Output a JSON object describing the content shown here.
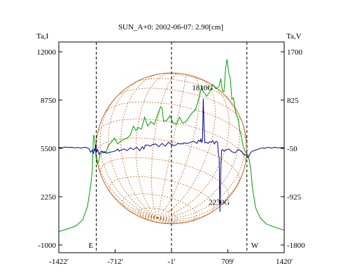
{
  "chart_data": {
    "type": "line",
    "title": "SUN_A+0: 2002-06-07: 2.90[cm]",
    "left_axis_label": "Ta,I",
    "right_axis_label": "Ta,V",
    "x_ticks": [
      "-1422'",
      "-712'",
      "-1'",
      "709'",
      "1420'"
    ],
    "x_tick_values": [
      -1422,
      -712,
      -1,
      709,
      1420
    ],
    "xlim": [
      -1422,
      1420
    ],
    "left_ticks": [
      "12000",
      "8750",
      "5500",
      "2250",
      "-1000"
    ],
    "left_tick_values": [
      12000,
      8750,
      5500,
      2250,
      -1000
    ],
    "ylim_left": [
      -1000,
      12000
    ],
    "right_ticks": [
      "1700",
      "825",
      "-50",
      "-925",
      "-1800"
    ],
    "right_tick_values": [
      1700,
      825,
      -50,
      -925,
      -1800
    ],
    "ylim_right": [
      -1800,
      1700
    ],
    "limb_markers": [
      {
        "label": "E",
        "x": -950
      },
      {
        "label": "W",
        "x": 950
      }
    ],
    "center_marker_x": -1,
    "annotations": [
      {
        "text": "1810G",
        "x": 390,
        "y_left": 9400
      },
      {
        "text": "2230G",
        "x": 600,
        "y_left": 1700
      }
    ],
    "grid": false,
    "series": [
      {
        "axis": "left",
        "color": "#00a000",
        "x": [
          -1422,
          -1300,
          -1200,
          -1120,
          -1060,
          -1020,
          -1000,
          -985,
          -970,
          -955,
          -940,
          -920,
          -900,
          -880,
          -860,
          -840,
          -820,
          -800,
          -760,
          -720,
          -680,
          -640,
          -600,
          -560,
          -520,
          -480,
          -450,
          -420,
          -380,
          -340,
          -300,
          -260,
          -220,
          -180,
          -140,
          -120,
          -100,
          -60,
          -20,
          20,
          60,
          100,
          140,
          180,
          220,
          260,
          300,
          330,
          360,
          380,
          400,
          420,
          440,
          480,
          520,
          560,
          600,
          620,
          640,
          660,
          680,
          700,
          720,
          740,
          760,
          780,
          800,
          820,
          840,
          860,
          880,
          900,
          920,
          940,
          960,
          980,
          1000,
          1020,
          1060,
          1120,
          1200,
          1300,
          1420
        ],
        "y": [
          -100,
          100,
          300,
          700,
          1600,
          3000,
          4000,
          6400,
          6200,
          5000,
          4500,
          4600,
          5100,
          5200,
          5300,
          5200,
          5300,
          5700,
          5900,
          6200,
          5800,
          6000,
          6100,
          6200,
          6400,
          7000,
          6700,
          6900,
          6800,
          7600,
          7000,
          7300,
          7100,
          7700,
          8300,
          8200,
          7300,
          7400,
          7700,
          7200,
          7100,
          7600,
          7200,
          7300,
          7600,
          7900,
          8100,
          8600,
          9200,
          9700,
          9300,
          9200,
          9000,
          9300,
          9800,
          9500,
          9700,
          10200,
          9400,
          9300,
          10800,
          11500,
          10600,
          10200,
          8800,
          8900,
          8200,
          7700,
          7500,
          6700,
          6300,
          5700,
          5400,
          5200,
          5100,
          4700,
          4000,
          2800,
          1500,
          800,
          400,
          200,
          0
        ]
      },
      {
        "axis": "right",
        "color": "#00008b",
        "x": [
          -1422,
          -1380,
          -1340,
          -1300,
          -1260,
          -1220,
          -1180,
          -1140,
          -1100,
          -1060,
          -1040,
          -1020,
          -1000,
          -985,
          -975,
          -965,
          -955,
          -945,
          -930,
          -915,
          -900,
          -880,
          -860,
          -840,
          -820,
          -780,
          -740,
          -700,
          -680,
          -660,
          -640,
          -600,
          -560,
          -520,
          -480,
          -440,
          -400,
          -370,
          -350,
          -330,
          -300,
          -270,
          -240,
          -200,
          -160,
          -120,
          -80,
          -40,
          0,
          40,
          80,
          120,
          160,
          200,
          240,
          280,
          320,
          340,
          360,
          370,
          380,
          390,
          400,
          410,
          420,
          440,
          460,
          480,
          500,
          520,
          540,
          560,
          580,
          590,
          600,
          610,
          620,
          630,
          640,
          660,
          680,
          720,
          760,
          800,
          840,
          880,
          920,
          940,
          960,
          980,
          1000,
          1020,
          1060,
          1100,
          1140,
          1180,
          1220,
          1260,
          1300,
          1340,
          1380,
          1420
        ],
        "y": [
          -30,
          -40,
          -25,
          -35,
          -30,
          -40,
          -35,
          -45,
          -30,
          -40,
          -60,
          -120,
          -80,
          -150,
          -60,
          -90,
          20,
          -110,
          -70,
          -160,
          -120,
          -100,
          -130,
          -110,
          -140,
          -120,
          -110,
          -90,
          -60,
          -100,
          -80,
          -60,
          -90,
          -40,
          -70,
          -30,
          -90,
          -20,
          -60,
          10,
          10,
          -10,
          20,
          30,
          -20,
          40,
          -10,
          60,
          20,
          0,
          40,
          30,
          50,
          40,
          60,
          80,
          40,
          100,
          70,
          120,
          60,
          90,
          850,
          300,
          50,
          60,
          40,
          70,
          60,
          90,
          30,
          80,
          60,
          -150,
          -220,
          -1200,
          -450,
          -90,
          -70,
          -100,
          -80,
          -60,
          -110,
          -130,
          -70,
          -100,
          -170,
          -160,
          -220,
          -180,
          -120,
          -100,
          -80,
          -60,
          -40,
          -45,
          -30,
          -45,
          -30,
          -40,
          -35,
          -40
        ]
      }
    ]
  }
}
